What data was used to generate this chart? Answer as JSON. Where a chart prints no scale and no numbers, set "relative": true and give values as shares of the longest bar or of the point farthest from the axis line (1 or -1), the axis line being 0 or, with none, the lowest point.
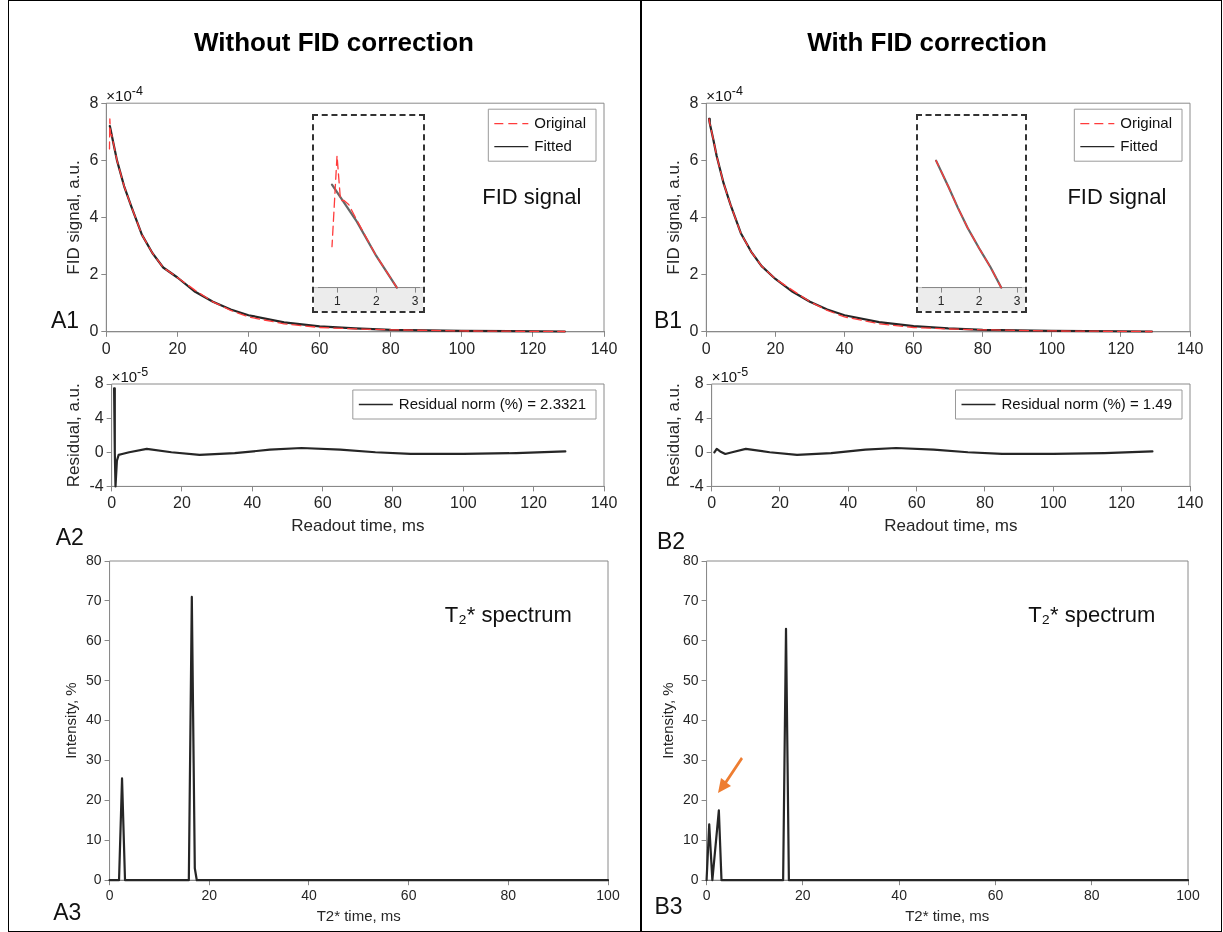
{
  "chart_data": [
    {
      "type": "line",
      "title": "Without FID correction",
      "ylabel": "FID signal, a.u.",
      "annotations": [
        "×10$^{-4}$",
        "FID signal",
        "A1"
      ],
      "xlim": [
        0,
        140
      ],
      "xticks": [
        0,
        20,
        40,
        60,
        80,
        100,
        120,
        140
      ],
      "ylim": [
        0,
        8
      ],
      "yticks": [
        0,
        2,
        4,
        6,
        8
      ],
      "grid": false,
      "legend": "top right",
      "marker": "none",
      "series": [
        {
          "name": "Original",
          "color": "#ff3b3b",
          "line_style": "dashed",
          "x": [
            0.9,
            1.0,
            1.2,
            1.5,
            2,
            3,
            5,
            7,
            10,
            13,
            16,
            20,
            25,
            30,
            35,
            40,
            50,
            60,
            70,
            80,
            100,
            129
          ],
          "values": [
            6.4,
            7.45,
            6.9,
            6.9,
            6.6,
            6.0,
            5.1,
            4.4,
            3.4,
            2.75,
            2.25,
            1.9,
            1.45,
            1.05,
            0.75,
            0.52,
            0.28,
            0.15,
            0.1,
            0.07,
            0.03,
            0.01
          ]
        },
        {
          "name": "Fitted",
          "color": "#262626",
          "line_style": "solid",
          "x": [
            1,
            2,
            3,
            5,
            7,
            10,
            13,
            16,
            20,
            25,
            30,
            35,
            40,
            50,
            60,
            70,
            80,
            100,
            129
          ],
          "values": [
            7.2,
            6.6,
            6.0,
            5.1,
            4.4,
            3.4,
            2.75,
            2.25,
            1.9,
            1.4,
            1.05,
            0.78,
            0.58,
            0.33,
            0.19,
            0.12,
            0.07,
            0.03,
            0.01
          ]
        }
      ]
    },
    {
      "type": "line",
      "relative": true,
      "xlim": [
        0.5,
        3.1
      ],
      "xticks": [
        1,
        2,
        3
      ],
      "grid": false,
      "marker": "none",
      "series": [
        {
          "color": "#ff3b3b",
          "line_style": "dashed",
          "x": [
            0.86,
            0.99,
            1.08,
            1.17,
            1.29,
            1.52,
            1.98,
            2.53
          ],
          "values": [
            0.31,
            1,
            0.66,
            0.66,
            0.63,
            0.5,
            0.25,
            0
          ]
        },
        {
          "color": "#666666",
          "line_style": "solid",
          "x": [
            0.86,
            1.5,
            2.0,
            2.53
          ],
          "values": [
            0.78,
            0.5,
            0.24,
            0
          ]
        }
      ]
    },
    {
      "type": "line",
      "xlabel": "Readout time, ms",
      "ylabel": "Residual, a.u.",
      "annotations": [
        "×10$^{-5}$",
        "A2"
      ],
      "xlim": [
        0,
        140
      ],
      "xticks": [
        0,
        20,
        40,
        60,
        80,
        100,
        120,
        140
      ],
      "ylim": [
        -4,
        8
      ],
      "yticks": [
        -4,
        0,
        4,
        8
      ],
      "grid": false,
      "legend": "top right",
      "marker": "none",
      "series": [
        {
          "name": "Residual norm (%) = 2.3321",
          "color": "#262626",
          "line_style": "solid",
          "x": [
            0.7,
            0.9,
            1.1,
            1.5,
            2,
            3,
            5,
            10,
            17,
            25,
            35,
            45,
            54,
            65,
            75,
            85,
            100,
            115,
            129
          ],
          "values": [
            7.5,
            0,
            -4,
            -1.0,
            -0.3,
            -0.2,
            0,
            0.4,
            0,
            -0.3,
            -0.1,
            0.3,
            0.5,
            0.3,
            0,
            -0.2,
            -0.2,
            -0.1,
            0.1
          ]
        }
      ]
    },
    {
      "type": "line",
      "xlabel": "T2* time, ms",
      "ylabel": "Intensity, %",
      "annotations": [
        "T₂* spectrum",
        "A3"
      ],
      "x": [
        0,
        1.9,
        2.5,
        3.1,
        15.9,
        16.5,
        17.1,
        17.5,
        100
      ],
      "xlim": [
        0,
        100
      ],
      "xticks": [
        0,
        20,
        40,
        60,
        80,
        100
      ],
      "ylim": [
        0,
        80
      ],
      "yticks": [
        0,
        10,
        20,
        30,
        40,
        50,
        60,
        70,
        80
      ],
      "grid": false,
      "marker": "none",
      "series": [
        {
          "color": "#262626",
          "line_style": "solid",
          "values": [
            0,
            0,
            25.5,
            0,
            0,
            71,
            3,
            0,
            0
          ]
        }
      ]
    },
    {
      "type": "line",
      "title": "With FID correction",
      "ylabel": "FID signal, a.u.",
      "annotations": [
        "×10$^{-4}$",
        "FID signal",
        "B1"
      ],
      "xlim": [
        0,
        140
      ],
      "xticks": [
        0,
        20,
        40,
        60,
        80,
        100,
        120,
        140
      ],
      "ylim": [
        0,
        8
      ],
      "yticks": [
        0,
        2,
        4,
        6,
        8
      ],
      "grid": false,
      "legend": "top right",
      "marker": "none",
      "series": [
        {
          "name": "Original",
          "color": "#ff3b3b",
          "line_style": "dashed",
          "x": [
            0.8,
            1,
            2,
            3,
            5,
            7,
            10,
            13,
            16,
            20,
            25,
            30,
            35,
            40,
            50,
            60,
            70,
            80,
            100,
            129
          ],
          "values": [
            7.45,
            7.3,
            6.75,
            6.15,
            5.2,
            4.45,
            3.45,
            2.8,
            2.3,
            1.85,
            1.45,
            1.05,
            0.75,
            0.52,
            0.28,
            0.15,
            0.1,
            0.07,
            0.03,
            0.01
          ]
        },
        {
          "name": "Fitted",
          "color": "#262626",
          "line_style": "solid",
          "x": [
            0.8,
            1,
            2,
            3,
            5,
            7,
            10,
            13,
            16,
            20,
            25,
            30,
            35,
            40,
            50,
            60,
            70,
            80,
            100,
            129
          ],
          "values": [
            7.45,
            7.3,
            6.75,
            6.15,
            5.2,
            4.45,
            3.45,
            2.8,
            2.3,
            1.85,
            1.4,
            1.05,
            0.78,
            0.58,
            0.34,
            0.2,
            0.12,
            0.07,
            0.03,
            0.01
          ]
        }
      ]
    },
    {
      "type": "line",
      "relative": true,
      "xlim": [
        0.5,
        3.1
      ],
      "xticks": [
        1,
        2,
        3
      ],
      "grid": false,
      "marker": "none",
      "series": [
        {
          "color": "#ff3b3b",
          "line_style": "dashed",
          "x": [
            0.87,
            1.2,
            1.44,
            1.7,
            2.0,
            2.3,
            2.58
          ],
          "values": [
            1,
            0.79,
            0.63,
            0.47,
            0.31,
            0.16,
            0
          ]
        },
        {
          "color": "#666666",
          "line_style": "solid",
          "x": [
            0.87,
            1.2,
            1.44,
            1.7,
            2.0,
            2.3,
            2.58
          ],
          "values": [
            1,
            0.79,
            0.63,
            0.47,
            0.31,
            0.16,
            0
          ]
        }
      ]
    },
    {
      "type": "line",
      "xlabel": "Readout time, ms",
      "ylabel": "Residual, a.u.",
      "annotations": [
        "×10$^{-5}$",
        "B2"
      ],
      "xlim": [
        0,
        140
      ],
      "xticks": [
        0,
        20,
        40,
        60,
        80,
        100,
        120,
        140
      ],
      "ylim": [
        -4,
        8
      ],
      "yticks": [
        -4,
        0,
        4,
        8
      ],
      "grid": false,
      "legend": "top right",
      "marker": "none",
      "series": [
        {
          "name": "Residual norm (%) = 1.49",
          "color": "#262626",
          "line_style": "solid",
          "x": [
            0.8,
            1.5,
            2.5,
            4,
            6,
            10,
            17,
            25,
            35,
            45,
            54,
            65,
            75,
            85,
            100,
            115,
            129
          ],
          "values": [
            0,
            0.4,
            0.1,
            -0.2,
            0,
            0.4,
            0,
            -0.3,
            -0.1,
            0.3,
            0.5,
            0.3,
            0,
            -0.2,
            -0.2,
            -0.1,
            0.1
          ]
        }
      ]
    },
    {
      "type": "line",
      "xlabel": "T2* time, ms",
      "ylabel": "Intensity, %",
      "annotations": [
        "T₂* spectrum",
        "B3"
      ],
      "x": [
        0,
        0.55,
        1.2,
        2.55,
        3.1,
        15.9,
        16.5,
        17.1,
        100
      ],
      "xlim": [
        0,
        100
      ],
      "xticks": [
        0,
        20,
        40,
        60,
        80,
        100
      ],
      "ylim": [
        0,
        80
      ],
      "yticks": [
        0,
        10,
        20,
        30,
        40,
        50,
        60,
        70,
        80
      ],
      "grid": false,
      "marker": "none",
      "series": [
        {
          "color": "#262626",
          "line_style": "solid",
          "values": [
            0,
            14,
            0,
            17.5,
            0,
            0,
            63,
            0,
            0
          ]
        }
      ]
    }
  ]
}
